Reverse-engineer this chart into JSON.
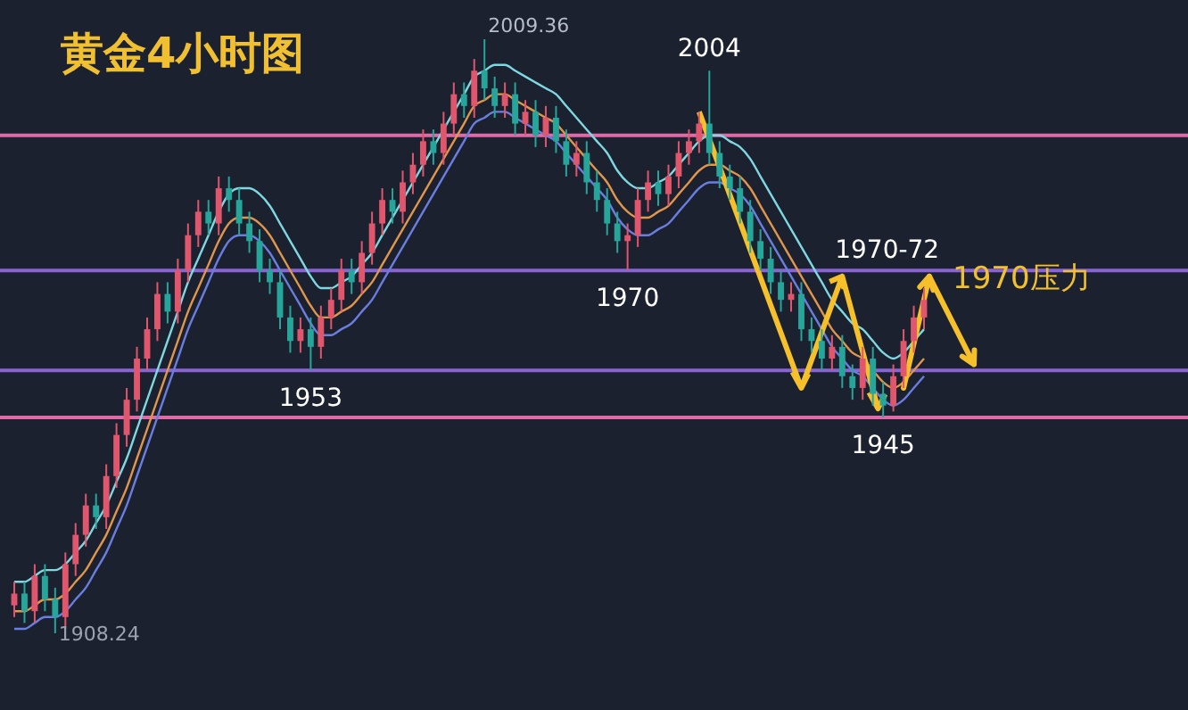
{
  "chart_data": {
    "type": "candlestick",
    "title": "黄金4小时图",
    "categories": [
      null,
      null,
      null,
      null,
      null,
      null,
      null,
      null,
      null,
      null,
      null,
      null,
      null,
      null,
      null,
      null,
      null,
      null,
      null,
      null,
      null,
      null,
      null,
      null,
      null,
      null,
      null,
      null,
      null,
      null,
      null,
      null,
      null,
      null,
      null,
      null,
      null,
      null,
      null,
      null,
      null,
      null,
      null,
      null,
      null,
      null,
      null,
      null,
      null,
      null,
      null,
      null,
      null,
      null,
      null,
      null,
      null,
      null,
      null,
      null,
      null,
      null,
      null,
      null,
      null,
      null,
      null,
      null,
      null,
      null,
      null,
      null,
      null,
      null,
      null,
      null,
      null,
      null,
      null,
      null,
      null,
      null,
      null,
      null,
      null,
      null,
      null,
      null,
      null,
      null
    ],
    "ohlc": [
      [
        1913,
        1917,
        1911,
        1915
      ],
      [
        1915,
        1917,
        1910,
        1912
      ],
      [
        1912,
        1920,
        1910,
        1918
      ],
      [
        1918,
        1920,
        1912,
        1914
      ],
      [
        1914,
        1916,
        1908.24,
        1911
      ],
      [
        1911,
        1922,
        1909,
        1920
      ],
      [
        1920,
        1927,
        1918,
        1925
      ],
      [
        1925,
        1932,
        1923,
        1930
      ],
      [
        1930,
        1932,
        1926,
        1928
      ],
      [
        1928,
        1937,
        1926,
        1935
      ],
      [
        1935,
        1944,
        1933,
        1942
      ],
      [
        1942,
        1950,
        1940,
        1948
      ],
      [
        1948,
        1957,
        1946,
        1955
      ],
      [
        1955,
        1962,
        1953,
        1960
      ],
      [
        1960,
        1968,
        1958,
        1966
      ],
      [
        1966,
        1968,
        1961,
        1963
      ],
      [
        1963,
        1972,
        1961,
        1970
      ],
      [
        1970,
        1978,
        1968,
        1976
      ],
      [
        1976,
        1982,
        1974,
        1980
      ],
      [
        1980,
        1982,
        1976,
        1978
      ],
      [
        1978,
        1986,
        1976,
        1984
      ],
      [
        1984,
        1986,
        1980,
        1982
      ],
      [
        1982,
        1984,
        1976,
        1978
      ],
      [
        1978,
        1980,
        1973,
        1975
      ],
      [
        1975,
        1977,
        1968,
        1970
      ],
      [
        1970,
        1972,
        1966,
        1968
      ],
      [
        1968,
        1970,
        1960,
        1962
      ],
      [
        1962,
        1964,
        1956,
        1958
      ],
      [
        1958,
        1962,
        1956,
        1960
      ],
      [
        1960,
        1962,
        1953,
        1957
      ],
      [
        1957,
        1964,
        1955,
        1962
      ],
      [
        1962,
        1967,
        1960,
        1965
      ],
      [
        1965,
        1972,
        1963,
        1970
      ],
      [
        1970,
        1972,
        1966,
        1968
      ],
      [
        1968,
        1975,
        1966,
        1973
      ],
      [
        1973,
        1980,
        1971,
        1978
      ],
      [
        1978,
        1984,
        1976,
        1982
      ],
      [
        1982,
        1984,
        1978,
        1980
      ],
      [
        1980,
        1987,
        1978,
        1985
      ],
      [
        1985,
        1990,
        1983,
        1988
      ],
      [
        1988,
        1994,
        1986,
        1992
      ],
      [
        1992,
        1994,
        1988,
        1990
      ],
      [
        1990,
        1997,
        1988,
        1995
      ],
      [
        1995,
        2002,
        1993,
        2000
      ],
      [
        2000,
        2002,
        1996,
        1998
      ],
      [
        1998,
        2006,
        1996,
        2004
      ],
      [
        2004,
        2009.36,
        1999,
        2001
      ],
      [
        2001,
        2003,
        1996,
        1998
      ],
      [
        1998,
        2002,
        1996,
        2000
      ],
      [
        2000,
        2002,
        1993,
        1995
      ],
      [
        1995,
        1999,
        1993,
        1997
      ],
      [
        1997,
        1999,
        1991,
        1993
      ],
      [
        1993,
        1998,
        1991,
        1996
      ],
      [
        1996,
        1998,
        1990,
        1992
      ],
      [
        1992,
        1994,
        1986,
        1988
      ],
      [
        1988,
        1992,
        1986,
        1990
      ],
      [
        1990,
        1992,
        1983,
        1985
      ],
      [
        1985,
        1987,
        1980,
        1982
      ],
      [
        1982,
        1984,
        1976,
        1978
      ],
      [
        1978,
        1980,
        1973,
        1975
      ],
      [
        1975,
        1978,
        1970,
        1976
      ],
      [
        1976,
        1984,
        1974,
        1982
      ],
      [
        1982,
        1987,
        1980,
        1985
      ],
      [
        1985,
        1987,
        1981,
        1983
      ],
      [
        1983,
        1988,
        1981,
        1986
      ],
      [
        1986,
        1992,
        1984,
        1990
      ],
      [
        1990,
        1994,
        1988,
        1992
      ],
      [
        1992,
        1997,
        1990,
        1995
      ],
      [
        1995,
        2004,
        1988,
        1990
      ],
      [
        1990,
        1992,
        1984,
        1986
      ],
      [
        1986,
        1988,
        1982,
        1984
      ],
      [
        1984,
        1986,
        1978,
        1980
      ],
      [
        1980,
        1982,
        1973,
        1975
      ],
      [
        1975,
        1977,
        1970,
        1972
      ],
      [
        1972,
        1974,
        1966,
        1968
      ],
      [
        1968,
        1970,
        1963,
        1965
      ],
      [
        1965,
        1968,
        1963,
        1966
      ],
      [
        1966,
        1968,
        1958,
        1960
      ],
      [
        1960,
        1962,
        1956,
        1958
      ],
      [
        1958,
        1960,
        1953,
        1955
      ],
      [
        1955,
        1959,
        1953,
        1957
      ],
      [
        1957,
        1959,
        1950,
        1952
      ],
      [
        1952,
        1954,
        1948,
        1950
      ],
      [
        1950,
        1957,
        1948,
        1955
      ],
      [
        1955,
        1957,
        1947,
        1949
      ],
      [
        1949,
        1951,
        1945,
        1947
      ],
      [
        1947,
        1954,
        1946,
        1952
      ],
      [
        1952,
        1960,
        1950,
        1958
      ],
      [
        1958,
        1964,
        1956,
        1962
      ],
      [
        1962,
        1967,
        1960,
        1965
      ]
    ],
    "colors": [
      "#e0566c",
      "#26a69a",
      "#e0566c",
      "#26a69a",
      "#26a69a",
      "#e0566c",
      "#e0566c",
      "#e0566c",
      "#26a69a",
      "#e0566c",
      "#e0566c",
      "#e0566c",
      "#e0566c",
      "#e0566c",
      "#e0566c",
      "#26a69a",
      "#e0566c",
      "#e0566c",
      "#e0566c",
      "#26a69a",
      "#e0566c",
      "#26a69a",
      "#26a69a",
      "#26a69a",
      "#26a69a",
      "#26a69a",
      "#26a69a",
      "#26a69a",
      "#e0566c",
      "#26a69a",
      "#e0566c",
      "#e0566c",
      "#e0566c",
      "#26a69a",
      "#e0566c",
      "#e0566c",
      "#e0566c",
      "#26a69a",
      "#e0566c",
      "#e0566c",
      "#e0566c",
      "#26a69a",
      "#e0566c",
      "#e0566c",
      "#26a69a",
      "#e0566c",
      "#26a69a",
      "#26a69a",
      "#e0566c",
      "#26a69a",
      "#e0566c",
      "#26a69a",
      "#e0566c",
      "#26a69a",
      "#26a69a",
      "#e0566c",
      "#26a69a",
      "#26a69a",
      "#26a69a",
      "#26a69a",
      "#e0566c",
      "#e0566c",
      "#e0566c",
      "#26a69a",
      "#e0566c",
      "#e0566c",
      "#e0566c",
      "#e0566c",
      "#26a69a",
      "#26a69a",
      "#26a69a",
      "#26a69a",
      "#26a69a",
      "#26a69a",
      "#26a69a",
      "#26a69a",
      "#e0566c",
      "#26a69a",
      "#26a69a",
      "#26a69a",
      "#e0566c",
      "#26a69a",
      "#26a69a",
      "#e0566c",
      "#26a69a",
      "#26a69a",
      "#e0566c",
      "#e0566c",
      "#e0566c",
      "#e0566c"
    ],
    "series": [
      {
        "type": "line",
        "color": "#7fd8e0",
        "values": [
          1917,
          1917,
          1918,
          1919,
          1919,
          1920,
          1922,
          1924,
          1927,
          1930,
          1934,
          1938,
          1943,
          1948,
          1953,
          1958,
          1963,
          1968,
          1972,
          1976,
          1980,
          1983,
          1984,
          1984,
          1983,
          1981,
          1978,
          1975,
          1972,
          1969,
          1967,
          1967,
          1968,
          1969,
          1971,
          1973,
          1976,
          1979,
          1982,
          1985,
          1988,
          1991,
          1994,
          1997,
          2000,
          2003,
          2004,
          2005,
          2005,
          2004,
          2003,
          2002,
          2001,
          2000,
          1998,
          1996,
          1994,
          1992,
          1990,
          1987,
          1985,
          1984,
          1984,
          1985,
          1986,
          1988,
          1990,
          1992,
          1993,
          1993,
          1992,
          1991,
          1989,
          1986,
          1983,
          1980,
          1977,
          1974,
          1971,
          1968,
          1965,
          1963,
          1961,
          1960,
          1958,
          1956,
          1955,
          1956,
          1958,
          1960
        ]
      },
      {
        "type": "line",
        "color": "#e0964c",
        "values": [
          1912,
          1912,
          1913,
          1914,
          1914,
          1915,
          1917,
          1919,
          1922,
          1925,
          1929,
          1933,
          1938,
          1943,
          1948,
          1953,
          1958,
          1963,
          1967,
          1971,
          1975,
          1978,
          1979,
          1979,
          1978,
          1976,
          1973,
          1970,
          1967,
          1964,
          1962,
          1962,
          1963,
          1964,
          1966,
          1968,
          1971,
          1974,
          1977,
          1980,
          1983,
          1986,
          1989,
          1992,
          1995,
          1998,
          1999,
          2000,
          2000,
          1999,
          1998,
          1997,
          1996,
          1995,
          1993,
          1991,
          1989,
          1987,
          1985,
          1982,
          1980,
          1979,
          1979,
          1980,
          1981,
          1983,
          1985,
          1987,
          1988,
          1988,
          1987,
          1986,
          1984,
          1981,
          1978,
          1975,
          1972,
          1969,
          1966,
          1963,
          1960,
          1958,
          1956,
          1955,
          1953,
          1951,
          1950,
          1951,
          1953,
          1955
        ]
      },
      {
        "type": "line",
        "color": "#6a7ee0",
        "values": [
          1909,
          1909,
          1910,
          1911,
          1911,
          1912,
          1914,
          1916,
          1919,
          1922,
          1926,
          1930,
          1935,
          1940,
          1945,
          1950,
          1955,
          1960,
          1964,
          1968,
          1972,
          1975,
          1976,
          1976,
          1975,
          1973,
          1970,
          1967,
          1964,
          1961,
          1959,
          1959,
          1960,
          1961,
          1963,
          1965,
          1968,
          1971,
          1974,
          1977,
          1980,
          1983,
          1986,
          1989,
          1992,
          1995,
          1996,
          1997,
          1997,
          1996,
          1995,
          1994,
          1993,
          1992,
          1990,
          1988,
          1986,
          1984,
          1982,
          1979,
          1977,
          1976,
          1976,
          1977,
          1978,
          1980,
          1982,
          1984,
          1985,
          1985,
          1984,
          1983,
          1981,
          1978,
          1975,
          1972,
          1969,
          1966,
          1963,
          1960,
          1957,
          1955,
          1953,
          1952,
          1950,
          1948,
          1947,
          1948,
          1950,
          1952
        ]
      }
    ],
    "ref_lines": [
      {
        "axis": "y",
        "value": 1993,
        "color": "#e06aa8"
      },
      {
        "axis": "y",
        "value": 1970,
        "color": "#8a64d6"
      },
      {
        "axis": "y",
        "value": 1953,
        "color": "#8a64d6"
      },
      {
        "axis": "y",
        "value": 1945,
        "color": "#e06aa8"
      }
    ],
    "annotations": [
      "2009.36",
      "1908.24",
      {
        "text": "2004",
        "y": 2004
      },
      {
        "text": "1970",
        "y": 1970
      },
      {
        "text": "1953",
        "y": 1953
      },
      {
        "text": "1945",
        "y": 1945
      },
      {
        "text": "1970-72",
        "y": 1971
      },
      {
        "text": "1970压力",
        "y": 1970
      }
    ]
  }
}
